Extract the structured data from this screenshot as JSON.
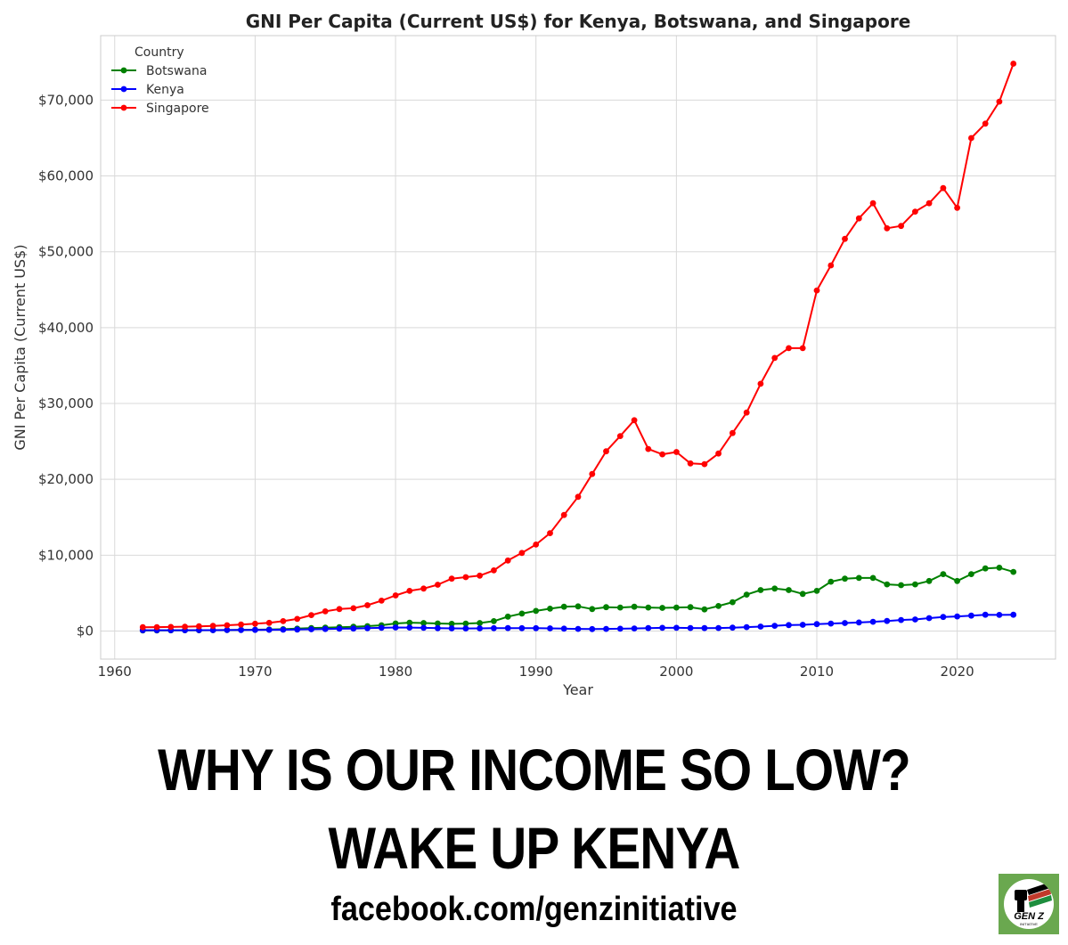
{
  "chart_data": {
    "type": "line",
    "title": "GNI Per Capita (Current US$) for Kenya, Botswana, and Singapore",
    "xlabel": "Year",
    "ylabel": "GNI Per Capita (Current US$)",
    "xlim": [
      1959,
      2027
    ],
    "ylim": [
      -3700,
      78500
    ],
    "xticks": [
      1960,
      1970,
      1980,
      1990,
      2000,
      2010,
      2020
    ],
    "xtick_labels": [
      "1960",
      "1970",
      "1980",
      "1990",
      "2000",
      "2010",
      "2020"
    ],
    "yticks": [
      0,
      10000,
      20000,
      30000,
      40000,
      50000,
      60000,
      70000
    ],
    "ytick_labels": [
      "$0",
      "$10,000",
      "$20,000",
      "$30,000",
      "$40,000",
      "$50,000",
      "$60,000",
      "$70,000"
    ],
    "grid": true,
    "legend": {
      "title": "Country",
      "position": "top-left"
    },
    "x": [
      1962,
      1963,
      1964,
      1965,
      1966,
      1967,
      1968,
      1969,
      1970,
      1971,
      1972,
      1973,
      1974,
      1975,
      1976,
      1977,
      1978,
      1979,
      1980,
      1981,
      1982,
      1983,
      1984,
      1985,
      1986,
      1987,
      1988,
      1989,
      1990,
      1991,
      1992,
      1993,
      1994,
      1995,
      1996,
      1997,
      1998,
      1999,
      2000,
      2001,
      2002,
      2003,
      2004,
      2005,
      2006,
      2007,
      2008,
      2009,
      2010,
      2011,
      2012,
      2013,
      2014,
      2015,
      2016,
      2017,
      2018,
      2019,
      2020,
      2021,
      2022,
      2023,
      2024
    ],
    "series": [
      {
        "name": "Botswana",
        "color": "#008000",
        "values": [
          70,
          80,
          90,
          100,
          110,
          120,
          130,
          150,
          170,
          200,
          250,
          320,
          400,
          450,
          500,
          560,
          640,
          760,
          1000,
          1100,
          1050,
          1000,
          950,
          980,
          1050,
          1300,
          1900,
          2300,
          2650,
          2950,
          3200,
          3250,
          2900,
          3150,
          3100,
          3200,
          3100,
          3050,
          3100,
          3150,
          2850,
          3300,
          3800,
          4800,
          5400,
          5600,
          5400,
          4900,
          5300,
          6500,
          6900,
          7000,
          7000,
          6150,
          6050,
          6150,
          6600,
          7500,
          6600,
          7500,
          8250,
          8350,
          7800
        ]
      },
      {
        "name": "Kenya",
        "color": "#0000ff",
        "values": [
          100,
          100,
          105,
          110,
          115,
          120,
          130,
          140,
          150,
          160,
          180,
          200,
          230,
          270,
          300,
          330,
          380,
          420,
          470,
          460,
          420,
          380,
          350,
          340,
          350,
          380,
          390,
          380,
          370,
          350,
          320,
          280,
          260,
          280,
          310,
          340,
          390,
          420,
          420,
          400,
          390,
          400,
          450,
          510,
          590,
          690,
          780,
          820,
          920,
          990,
          1050,
          1130,
          1220,
          1330,
          1450,
          1530,
          1700,
          1850,
          1920,
          2030,
          2150,
          2120,
          2150
        ]
      },
      {
        "name": "Singapore",
        "color": "#ff0000",
        "values": [
          500,
          520,
          540,
          570,
          620,
          680,
          760,
          860,
          960,
          1080,
          1300,
          1600,
          2100,
          2600,
          2900,
          3000,
          3400,
          4000,
          4700,
          5300,
          5600,
          6100,
          6900,
          7100,
          7300,
          8000,
          9300,
          10300,
          11400,
          12900,
          15300,
          17700,
          20700,
          23700,
          25700,
          27800,
          24000,
          23300,
          23600,
          22100,
          22000,
          23400,
          26100,
          28800,
          32600,
          36000,
          37300,
          37300,
          44900,
          48200,
          51700,
          54400,
          56400,
          53100,
          53400,
          55300,
          56400,
          58400,
          55800,
          65000,
          66900,
          69800,
          74800
        ]
      }
    ]
  },
  "headline": {
    "line1": "WHY IS OUR INCOME SO LOW?",
    "line2": "WAKE UP KENYA",
    "url": "facebook.com/genzinitiative"
  },
  "logo": {
    "text": "GEN Z",
    "subtext": "INITIATIVE",
    "colors": [
      "#000000",
      "#c0392b",
      "#1e8e3e"
    ]
  }
}
